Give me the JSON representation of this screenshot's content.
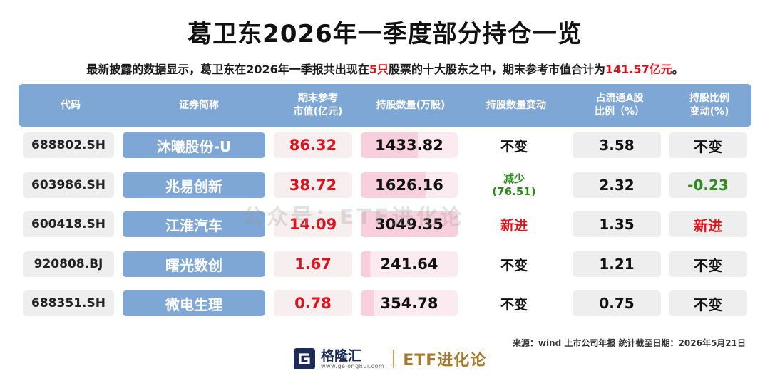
{
  "title": "葛卫东2026年一季度部分持仓一览",
  "subtitle": {
    "part1": "最新披露的数据显示，葛卫东在2026年一季报共出现在",
    "count": "5只",
    "part2": "股票的十大股东之中，期末参考市值合计为",
    "total": "141.57亿元",
    "part3": "。"
  },
  "table": {
    "headers": [
      "代码",
      "证券简称",
      "期末参考\n市值(亿元)",
      "持股数量(万股)",
      "持股数量变动",
      "占流通A股\n比例（%）",
      "持股比例\n变动(%)"
    ],
    "rows": [
      {
        "code": "688802.SH",
        "name": "沐曦股份-U",
        "market_value": "86.32",
        "shares": "1433.82",
        "share_change": "不变",
        "share_change_line2": "",
        "share_change_color": "#111111",
        "float_pct": "3.58",
        "ratio_change": "不变",
        "ratio_change_color": "#111111",
        "qty_fill": 0.59
      },
      {
        "code": "603986.SH",
        "name": "兆易创新",
        "market_value": "38.72",
        "shares": "1626.16",
        "share_change": "减少",
        "share_change_line2": "(76.51)",
        "share_change_color": "#2e8b1e",
        "float_pct": "2.32",
        "ratio_change": "-0.23",
        "ratio_change_color": "#2e8b1e",
        "qty_fill": 0.67
      },
      {
        "code": "600418.SH",
        "name": "江淮汽车",
        "market_value": "14.09",
        "shares": "3049.35",
        "share_change": "新进",
        "share_change_line2": "",
        "share_change_color": "#d9141c",
        "float_pct": "1.35",
        "ratio_change": "新进",
        "ratio_change_color": "#d9141c",
        "qty_fill": 1.0
      },
      {
        "code": "920808.BJ",
        "name": "曙光数创",
        "market_value": "1.67",
        "shares": "241.64",
        "share_change": "不变",
        "share_change_line2": "",
        "share_change_color": "#111111",
        "float_pct": "1.21",
        "ratio_change": "不变",
        "ratio_change_color": "#111111",
        "qty_fill": 0.1
      },
      {
        "code": "688351.SH",
        "name": "微电生理",
        "market_value": "0.78",
        "shares": "354.78",
        "share_change": "不变",
        "share_change_line2": "",
        "share_change_color": "#111111",
        "float_pct": "0.75",
        "ratio_change": "不变",
        "ratio_change_color": "#111111",
        "qty_fill": 0.14
      }
    ]
  },
  "watermark": "公众号：ETF进化论",
  "source": "来源：wind 上市公司年报  统计截至日期：2026年5月21日",
  "logo": {
    "brand": "格隆汇",
    "url": "www.gelonghui.com",
    "etf": "ETF进化论",
    "icon": "g-logo-icon"
  },
  "colors": {
    "header_bg": "#7fa7d6",
    "red": "#d9141c",
    "green": "#2e8b1e",
    "qty_bar": "#f8cfdc"
  }
}
